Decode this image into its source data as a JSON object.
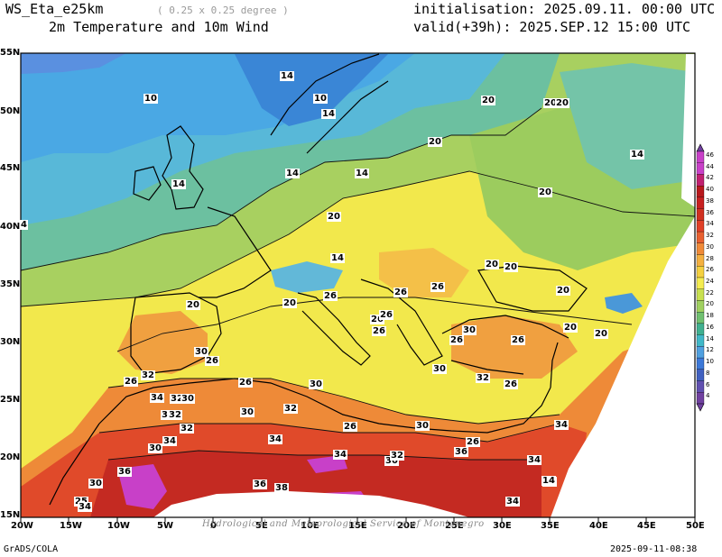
{
  "header": {
    "model": "WS_Eta_e25km",
    "resolution": "( 0.25 x 0.25 degree )",
    "field": "2m Temperature and 10m Wind",
    "init": "initialisation: 2025.09.11. 00:00 UTC",
    "valid": "valid(+39h): 2025.SEP.12 15:00 UTC"
  },
  "axes": {
    "lon_ticks": [
      "20W",
      "15W",
      "10W",
      "5W",
      "0",
      "5E",
      "10E",
      "15E",
      "20E",
      "25E",
      "30E",
      "35E",
      "40E",
      "45E",
      "50E"
    ],
    "lat_ticks": [
      "55N",
      "50N",
      "45N",
      "40N",
      "35N",
      "30N",
      "25N",
      "20N",
      "15N"
    ]
  },
  "legend": {
    "values": [
      "46",
      "44",
      "42",
      "40",
      "38",
      "36",
      "34",
      "32",
      "30",
      "28",
      "26",
      "24",
      "22",
      "20",
      "18",
      "16",
      "14",
      "12",
      "10",
      "8",
      "6",
      "4"
    ],
    "colors": [
      "#c840c8",
      "#c840c8",
      "#c02070",
      "#b8181c",
      "#c82020",
      "#d03020",
      "#e04028",
      "#e86030",
      "#f08a38",
      "#f4b040",
      "#f4d040",
      "#f4ec50",
      "#c8e050",
      "#a0d060",
      "#70c070",
      "#40b090",
      "#40b8c8",
      "#50a0e0",
      "#3c78d8",
      "#4060c0",
      "#6050b0",
      "#7040a0"
    ]
  },
  "contour_labels": [
    {
      "text": "14"
    },
    {
      "text": "10"
    },
    {
      "text": "10"
    },
    {
      "text": "14"
    },
    {
      "text": "20"
    },
    {
      "text": "20"
    },
    {
      "text": "20"
    },
    {
      "text": "14"
    },
    {
      "text": "14"
    },
    {
      "text": "14"
    },
    {
      "text": "14"
    },
    {
      "text": "20"
    },
    {
      "text": "4"
    },
    {
      "text": "20"
    },
    {
      "text": "20"
    },
    {
      "text": "14"
    },
    {
      "text": "20"
    },
    {
      "text": "20"
    },
    {
      "text": "26"
    },
    {
      "text": "26"
    },
    {
      "text": "26"
    },
    {
      "text": "20"
    },
    {
      "text": "20"
    },
    {
      "text": "20"
    },
    {
      "text": "26"
    },
    {
      "text": "26"
    },
    {
      "text": "26"
    },
    {
      "text": "30"
    },
    {
      "text": "26"
    },
    {
      "text": "26"
    },
    {
      "text": "20"
    },
    {
      "text": "20"
    },
    {
      "text": "30"
    },
    {
      "text": "26"
    },
    {
      "text": "26"
    },
    {
      "text": "32"
    },
    {
      "text": "30"
    },
    {
      "text": "32"
    },
    {
      "text": "26"
    },
    {
      "text": "26"
    },
    {
      "text": "30"
    },
    {
      "text": "34"
    },
    {
      "text": "32"
    },
    {
      "text": "30"
    },
    {
      "text": "36"
    },
    {
      "text": "32"
    },
    {
      "text": "30"
    },
    {
      "text": "32"
    },
    {
      "text": "26"
    },
    {
      "text": "30"
    },
    {
      "text": "34"
    },
    {
      "text": "32"
    },
    {
      "text": "30"
    },
    {
      "text": "34"
    },
    {
      "text": "34"
    },
    {
      "text": "30"
    },
    {
      "text": "26"
    },
    {
      "text": "32"
    },
    {
      "text": "36"
    },
    {
      "text": "34"
    },
    {
      "text": "36"
    },
    {
      "text": "32"
    },
    {
      "text": "30"
    },
    {
      "text": "36"
    },
    {
      "text": "38"
    },
    {
      "text": "25"
    },
    {
      "text": "34"
    },
    {
      "text": "34"
    },
    {
      "text": "32"
    },
    {
      "text": "34"
    },
    {
      "text": "14"
    }
  ],
  "footer": {
    "left": "GrADS/COLA",
    "right": "2025-09-11-08:38",
    "credit": "Hydrological and Meteorological Service of Montenegro"
  }
}
